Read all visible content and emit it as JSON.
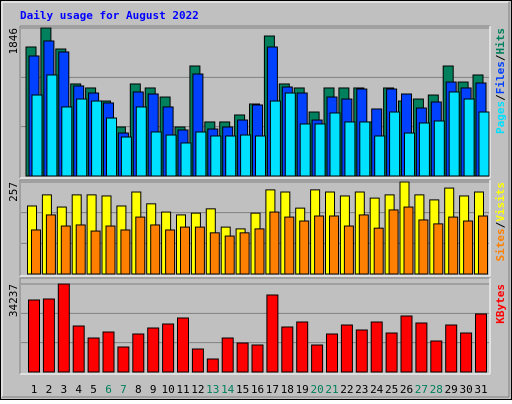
{
  "title": "Daily usage for August 2022",
  "legend_separator": "/",
  "categories": [
    "1",
    "2",
    "3",
    "4",
    "5",
    "6",
    "7",
    "8",
    "9",
    "10",
    "11",
    "12",
    "13",
    "14",
    "15",
    "16",
    "17",
    "18",
    "19",
    "20",
    "21",
    "22",
    "23",
    "24",
    "25",
    "26",
    "27",
    "28",
    "29",
    "30",
    "31"
  ],
  "category_colors": [
    "#000000",
    "#000000",
    "#000000",
    "#000000",
    "#000000",
    "#00805c",
    "#00805c",
    "#000000",
    "#000000",
    "#000000",
    "#000000",
    "#000000",
    "#00805c",
    "#00805c",
    "#000000",
    "#000000",
    "#000000",
    "#000000",
    "#000000",
    "#00805c",
    "#00805c",
    "#000000",
    "#000000",
    "#000000",
    "#000000",
    "#000000",
    "#00805c",
    "#00805c",
    "#000000",
    "#000000",
    "#000000"
  ],
  "chart_data": [
    {
      "type": "bar",
      "ylim": [
        0,
        1846
      ],
      "yticks": [
        1846
      ],
      "series": [
        {
          "name": "Hits",
          "color": "#00805c",
          "values": [
            1609,
            1846,
            1584,
            1148,
            1098,
            935,
            611,
            1148,
            1098,
            985,
            611,
            1372,
            674,
            674,
            761,
            898,
            1746,
            1148,
            1098,
            798,
            1098,
            1098,
            1098,
            674,
            1098,
            935,
            960,
            1010,
            1372,
            1172,
            1260
          ]
        },
        {
          "name": "Files",
          "color": "#0040ff",
          "values": [
            1497,
            1684,
            1547,
            1123,
            1035,
            911,
            536,
            1048,
            1023,
            861,
            574,
            1272,
            586,
            611,
            698,
            886,
            1609,
            1110,
            1035,
            698,
            985,
            960,
            1085,
            836,
            1085,
            1023,
            848,
            923,
            1172,
            1098,
            1160
          ]
        },
        {
          "name": "Pages",
          "color": "#00e0ff",
          "values": [
            1010,
            1260,
            861,
            960,
            935,
            723,
            486,
            861,
            549,
            511,
            412,
            549,
            499,
            499,
            511,
            499,
            935,
            1035,
            649,
            649,
            786,
            674,
            674,
            499,
            798,
            536,
            661,
            686,
            1048,
            960,
            798
          ]
        }
      ]
    },
    {
      "type": "bar",
      "ylim": [
        0,
        257
      ],
      "yticks": [
        257
      ],
      "series": [
        {
          "name": "Visits",
          "color": "#ffff00",
          "values": [
            190,
            221,
            187,
            221,
            221,
            218,
            190,
            229,
            196,
            173,
            165,
            170,
            182,
            131,
            126,
            170,
            235,
            229,
            184,
            235,
            229,
            218,
            229,
            212,
            221,
            257,
            221,
            207,
            240,
            218,
            229
          ]
        },
        {
          "name": "Sites",
          "color": "#ff8000",
          "values": [
            123,
            165,
            134,
            137,
            120,
            134,
            123,
            159,
            137,
            123,
            131,
            131,
            115,
            106,
            115,
            126,
            173,
            159,
            148,
            162,
            162,
            134,
            165,
            128,
            179,
            187,
            151,
            140,
            159,
            148,
            162
          ]
        }
      ]
    },
    {
      "type": "bar",
      "ylim": [
        0,
        34237
      ],
      "yticks": [
        34237
      ],
      "series": [
        {
          "name": "KBytes",
          "color": "#ff0000",
          "values": [
            28012,
            28401,
            34237,
            17897,
            13228,
            15562,
            9727,
            14784,
            17119,
            18675,
            21009,
            8948,
            5058,
            13228,
            11283,
            10505,
            29958,
            17508,
            19453,
            10505,
            14784,
            18286,
            16341,
            19453,
            15173,
            21787,
            19064,
            12061,
            18286,
            15173,
            22565
          ]
        }
      ]
    }
  ]
}
